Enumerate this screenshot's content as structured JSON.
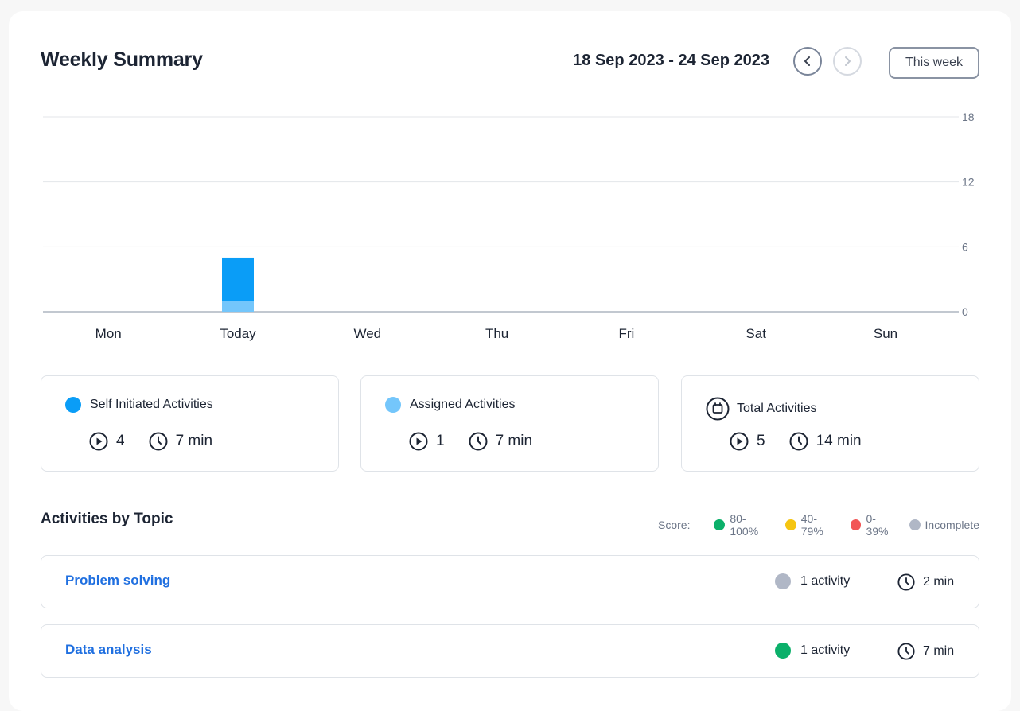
{
  "header": {
    "title": "Weekly Summary",
    "date_range": "18 Sep 2023 - 24 Sep 2023",
    "this_week_label": "This week"
  },
  "colors": {
    "self_initiated": "#0a9df7",
    "assigned": "#74c6fb",
    "link": "#1f6fe0",
    "score_high": "#0bb06a",
    "score_mid": "#f5c512",
    "score_low": "#f25555",
    "incomplete": "#b0b7c6"
  },
  "chart_data": {
    "type": "bar",
    "stacked": true,
    "categories": [
      "Mon",
      "Today",
      "Wed",
      "Thu",
      "Fri",
      "Sat",
      "Sun"
    ],
    "series": [
      {
        "name": "Assigned Activities",
        "color": "#74c6fb",
        "values": [
          0,
          1,
          0,
          0,
          0,
          0,
          0
        ]
      },
      {
        "name": "Self Initiated Activities",
        "color": "#0a9df7",
        "values": [
          0,
          4,
          0,
          0,
          0,
          0,
          0
        ]
      }
    ],
    "y_ticks": [
      0,
      6,
      12,
      18
    ],
    "ylim": [
      0,
      18
    ],
    "y_axis_side": "right",
    "grid": true
  },
  "stats": [
    {
      "label": "Self Initiated Activities",
      "count": "4",
      "time": "7 min",
      "marker": "dot",
      "color": "#0a9df7"
    },
    {
      "label": "Assigned Activities",
      "count": "1",
      "time": "7 min",
      "marker": "dot",
      "color": "#74c6fb"
    },
    {
      "label": "Total Activities",
      "count": "5",
      "time": "14 min",
      "marker": "calendar-icon"
    }
  ],
  "topics_section": {
    "title": "Activities by Topic",
    "score_label": "Score:",
    "legend": [
      {
        "label": "80-100%",
        "color": "#0bb06a"
      },
      {
        "label": "40-79%",
        "color": "#f5c512"
      },
      {
        "label": "0-39%",
        "color": "#f25555"
      },
      {
        "label": "Incomplete",
        "color": "#b0b7c6"
      }
    ],
    "topics": [
      {
        "name": "Problem solving",
        "activities": "1 activity",
        "time": "2 min",
        "status_color": "#b0b7c6"
      },
      {
        "name": "Data analysis",
        "activities": "1 activity",
        "time": "7 min",
        "status_color": "#0bb06a"
      }
    ]
  }
}
